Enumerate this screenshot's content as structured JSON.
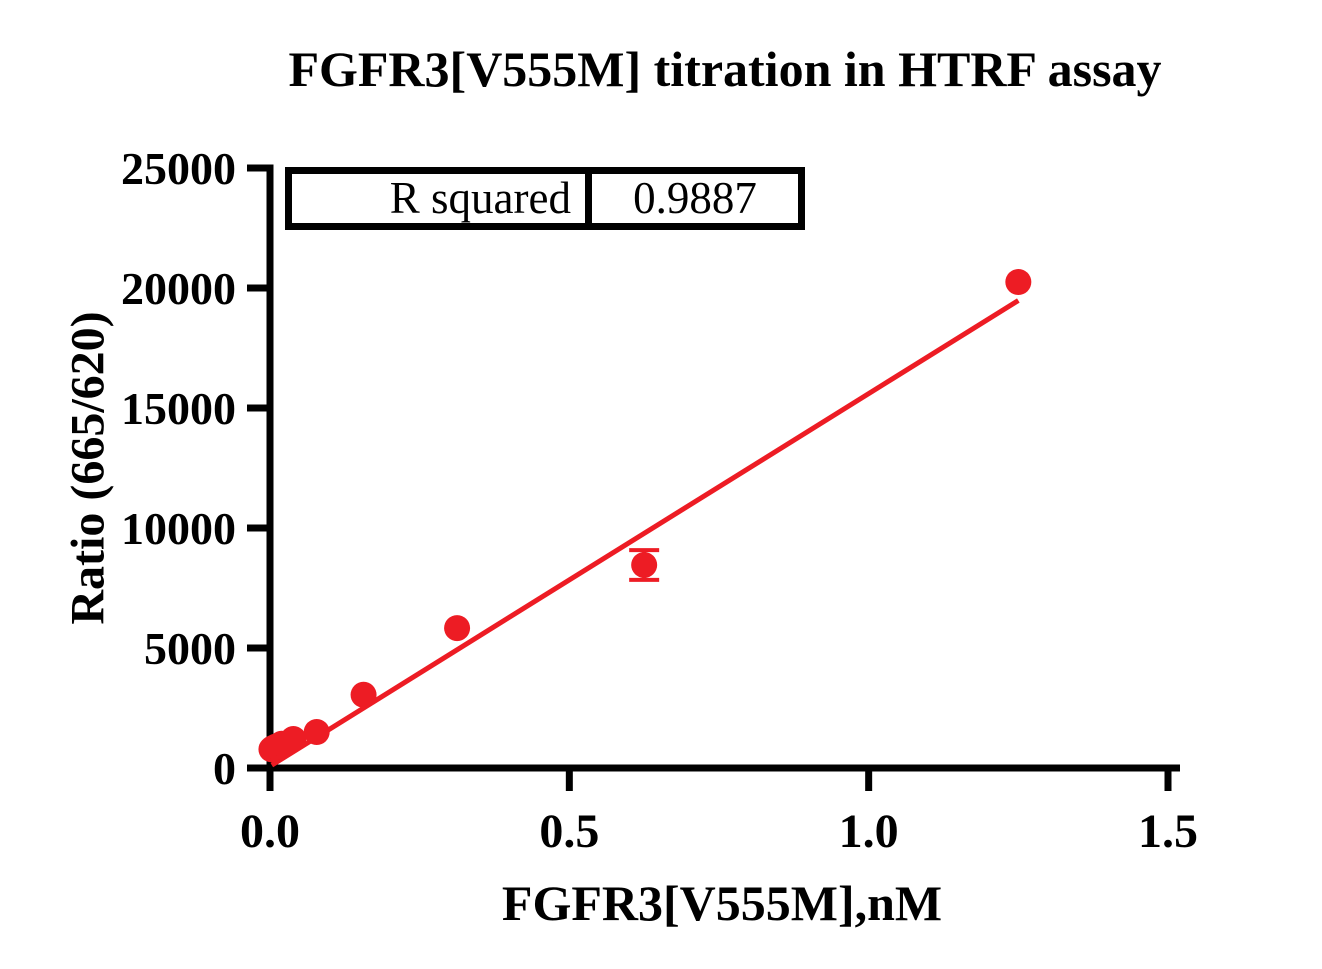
{
  "title": "FGFR3[V555M] titration in HTRF assay",
  "stats_box": {
    "label": "R squared",
    "value": "0.9887"
  },
  "colors": {
    "accent": "#ED1C24",
    "axis": "#000000",
    "background": "#FFFFFF"
  },
  "chart_data": {
    "type": "scatter",
    "title": "FGFR3[V555M] titration in HTRF assay",
    "xlabel": "FGFR3[V555M],nM",
    "ylabel": "Ratio (665/620)",
    "xlim": [
      0,
      1.5
    ],
    "ylim": [
      0,
      25000
    ],
    "xticks": [
      0.0,
      0.5,
      1.0,
      1.5
    ],
    "xtick_labels": [
      "0.0",
      "0.5",
      "1.0",
      "1.5"
    ],
    "yticks": [
      0,
      5000,
      10000,
      15000,
      20000,
      25000
    ],
    "ytick_labels": [
      "0",
      "5000",
      "10000",
      "15000",
      "20000",
      "25000"
    ],
    "grid": false,
    "legend": false,
    "r_squared": 0.9887,
    "series": [
      {
        "name": "FGFR3[V555M] titration",
        "marker": "circle",
        "marker_color": "#ED1C24",
        "points": [
          {
            "x": 0.0024,
            "y": 780
          },
          {
            "x": 0.0049,
            "y": 830
          },
          {
            "x": 0.0098,
            "y": 890
          },
          {
            "x": 0.0195,
            "y": 1010
          },
          {
            "x": 0.039,
            "y": 1210
          },
          {
            "x": 0.078,
            "y": 1500
          },
          {
            "x": 0.1563,
            "y": 3050
          },
          {
            "x": 0.3125,
            "y": 5830
          },
          {
            "x": 0.625,
            "y": 8460,
            "yerr": 620
          },
          {
            "x": 1.25,
            "y": 20250
          }
        ]
      }
    ],
    "fit_line": {
      "type": "linear",
      "color": "#ED1C24",
      "x1": 0.003,
      "y1": 120,
      "x2": 1.25,
      "y2": 19480
    }
  }
}
